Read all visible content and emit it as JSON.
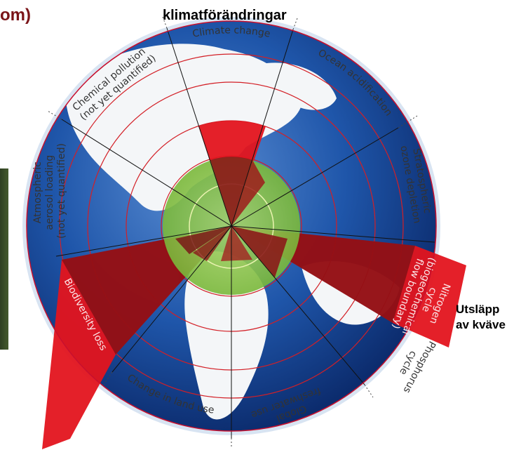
{
  "header": {
    "left_fragment": "om)",
    "title": "klimatförändringar"
  },
  "side_note": {
    "line1": "Utsläpp",
    "line2": "av kväve"
  },
  "boundaries": [
    {
      "key": "climate",
      "label": "Climate change"
    },
    {
      "key": "ocean",
      "label": "Ocean acidification"
    },
    {
      "key": "ozone",
      "label_lines": [
        "Stratospheric",
        "ozone depletion"
      ]
    },
    {
      "key": "nitrogen",
      "label_lines": [
        "Nitrogen",
        "cycle",
        "(biogeochemical",
        "flow boundary)"
      ]
    },
    {
      "key": "phosphorus",
      "label_lines": [
        "Phosphorus",
        "cycle"
      ]
    },
    {
      "key": "freshwater",
      "label_lines": [
        "Global",
        "freshwater use"
      ]
    },
    {
      "key": "landuse",
      "label": "Change in land use"
    },
    {
      "key": "biodiversity",
      "label": "Biodiversity loss"
    },
    {
      "key": "aerosol",
      "label_lines": [
        "Atmospheric",
        "aerosol loading",
        "(not yet quantified)"
      ]
    },
    {
      "key": "chemical",
      "label_lines": [
        "Chemical pollution",
        "(not yet quantified)"
      ]
    }
  ],
  "colors": {
    "transgressed": "#e3141e",
    "safe_zone": "#8cc63f",
    "ocean": "#1d4fa0",
    "rim": "#c8102e"
  }
}
